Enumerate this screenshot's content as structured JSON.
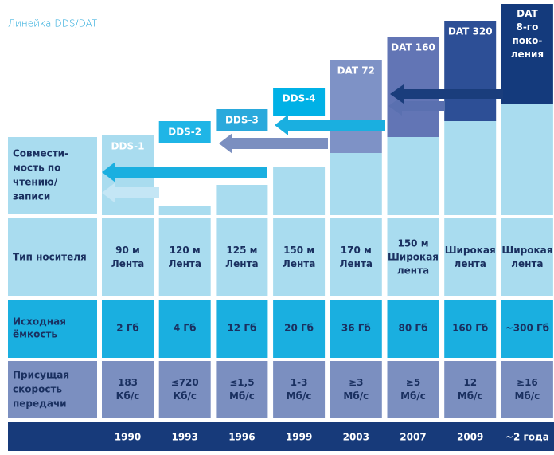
{
  "title": "Линейка DDS/DAT",
  "row_labels": {
    "compatibility": [
      "Совмести-",
      "мость по",
      "чтению/",
      "записи"
    ],
    "media": [
      "Тип носителя"
    ],
    "capacity": [
      "Исходная",
      "ёмкость"
    ],
    "speed": [
      "Присущая",
      "скорость",
      "передачи"
    ]
  },
  "columns": [
    {
      "name": [
        "DDS-1"
      ],
      "media": [
        "90 м",
        "Лента"
      ],
      "capacity": [
        "2 Гб"
      ],
      "speed": [
        "183",
        "Кб/с"
      ],
      "year": "1990"
    },
    {
      "name": [
        "DDS-2"
      ],
      "media": [
        "120 м",
        "Лента"
      ],
      "capacity": [
        "4 Гб"
      ],
      "speed": [
        "≤720",
        "Кб/с"
      ],
      "year": "1993"
    },
    {
      "name": [
        "DDS-3"
      ],
      "media": [
        "125 м",
        "Лента"
      ],
      "capacity": [
        "12 Гб"
      ],
      "speed": [
        "≤1,5",
        "Мб/с"
      ],
      "year": "1996"
    },
    {
      "name": [
        "DDS-4"
      ],
      "media": [
        "150 м",
        "Лента"
      ],
      "capacity": [
        "20 Гб"
      ],
      "speed": [
        "1-3",
        "Мб/с"
      ],
      "year": "1999"
    },
    {
      "name": [
        "DAT 72"
      ],
      "media": [
        "170 м",
        "Лента"
      ],
      "capacity": [
        "36 Гб"
      ],
      "speed": [
        "≥3",
        "Мб/с"
      ],
      "year": "2003"
    },
    {
      "name": [
        "DAT 160"
      ],
      "media": [
        "150 м",
        "Широкая",
        "лента"
      ],
      "capacity": [
        "80 Гб"
      ],
      "speed": [
        "≥5",
        "Мб/с"
      ],
      "year": "2007"
    },
    {
      "name": [
        "DAT 320"
      ],
      "media": [
        "Широкая",
        "лента"
      ],
      "capacity": [
        "160 Гб"
      ],
      "speed": [
        "12",
        "Мб/с"
      ],
      "year": "2009"
    },
    {
      "name": [
        "DAT",
        "8-го",
        "поко-",
        "ления"
      ],
      "media": [
        "Широкая",
        "лента"
      ],
      "capacity": [
        "~300 Гб"
      ],
      "speed": [
        "≥16",
        "Мб/с"
      ],
      "year": "~2 года"
    }
  ]
}
